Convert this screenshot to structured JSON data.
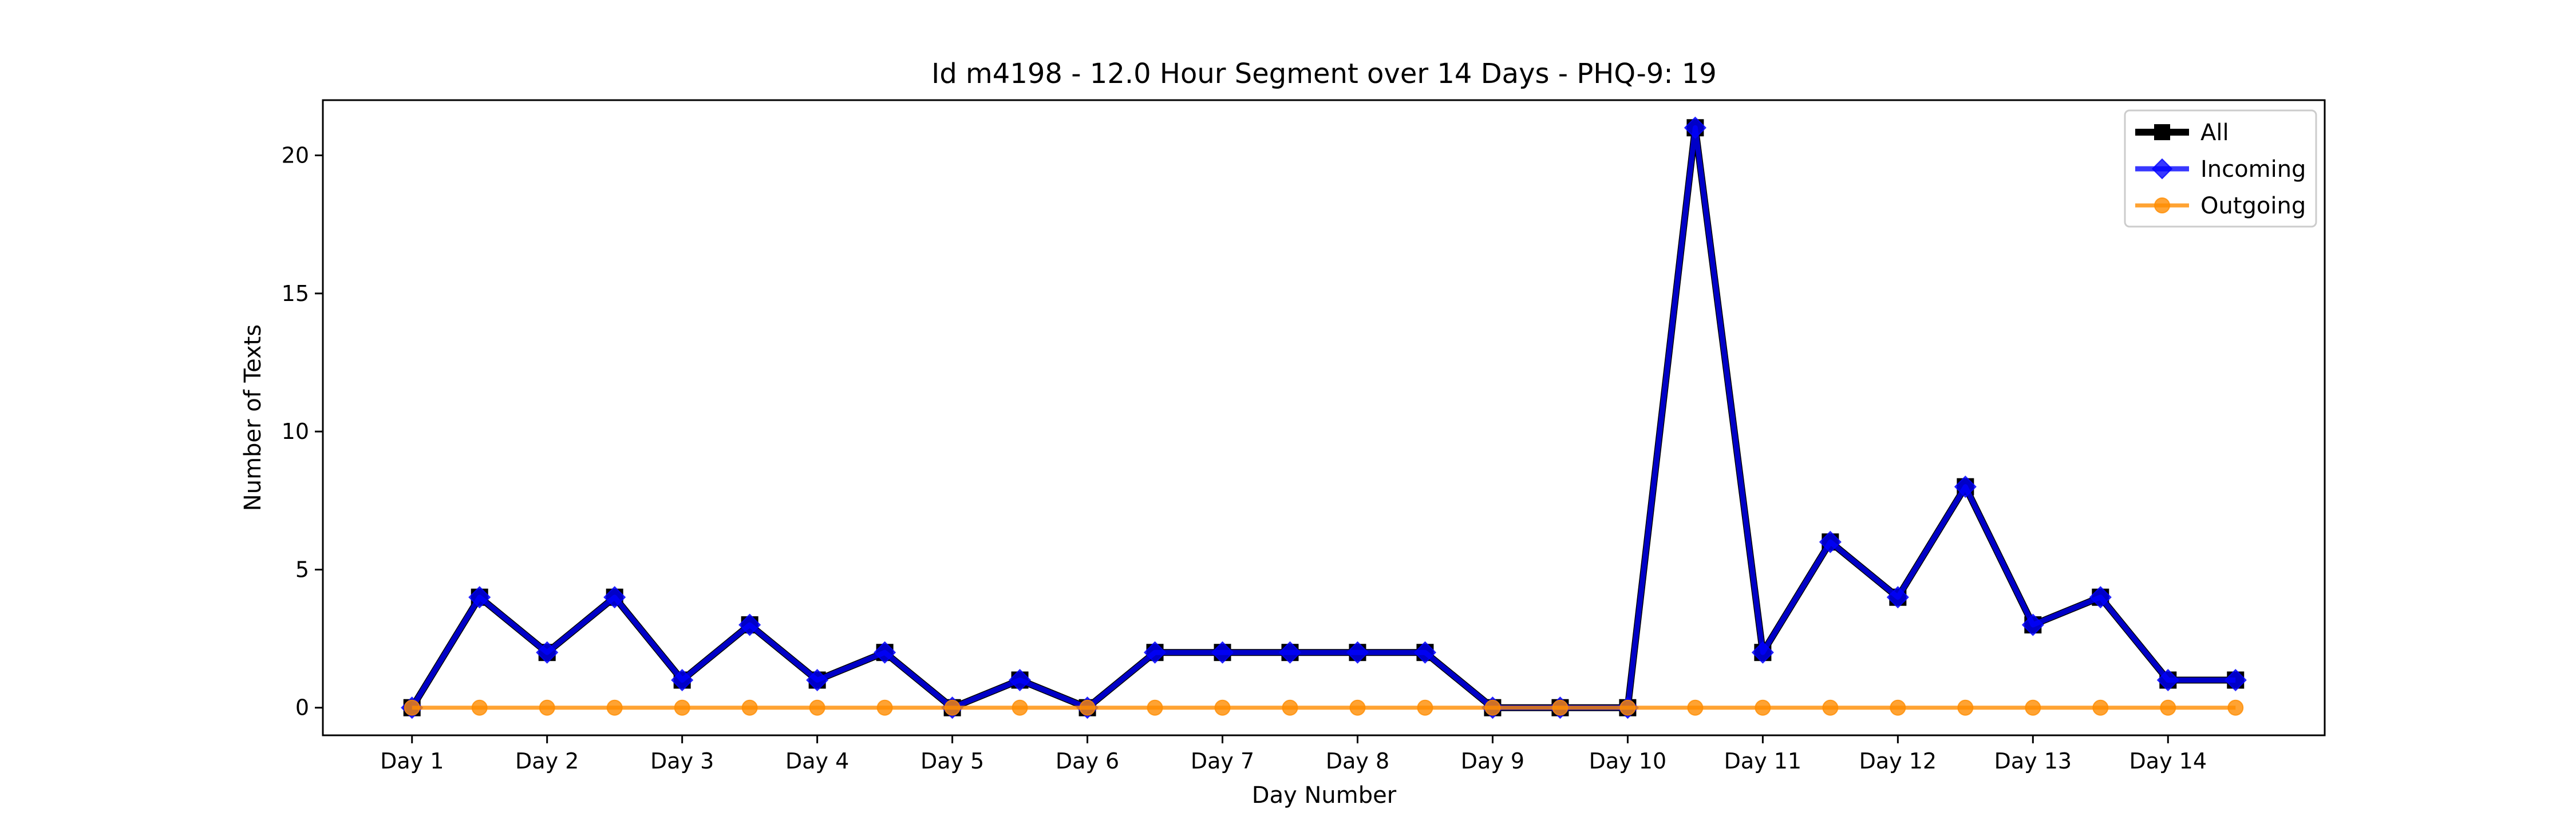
{
  "chart_data": {
    "type": "line",
    "title": "Id m4198 - 12.0 Hour Segment over 14 Days - PHQ-9: 19",
    "xlabel": "Day Number",
    "ylabel": "Number of Texts",
    "x_tick_labels": [
      "Day 1",
      "Day 2",
      "Day 3",
      "Day 4",
      "Day 5",
      "Day 6",
      "Day 7",
      "Day 8",
      "Day 9",
      "Day 10",
      "Day 11",
      "Day 12",
      "Day 13",
      "Day 14"
    ],
    "x": [
      1,
      1.5,
      2,
      2.5,
      3,
      3.5,
      4,
      4.5,
      5,
      5.5,
      6,
      6.5,
      7,
      7.5,
      8,
      8.5,
      9,
      9.5,
      10,
      10.5,
      11,
      11.5,
      12,
      12.5,
      13,
      13.5,
      14,
      14.5
    ],
    "y_ticks": [
      0,
      5,
      10,
      15,
      20
    ],
    "ylim": [
      -1,
      22
    ],
    "xlim": [
      0.34,
      15.16
    ],
    "grid": false,
    "legend_position": "top-right",
    "series": [
      {
        "name": "All",
        "color": "#000000",
        "marker": "square",
        "values": [
          0,
          4,
          2,
          4,
          1,
          3,
          1,
          2,
          0,
          1,
          0,
          2,
          2,
          2,
          2,
          2,
          0,
          0,
          0,
          21,
          2,
          6,
          4,
          8,
          3,
          4,
          1,
          1
        ]
      },
      {
        "name": "Incoming",
        "color": "#0000ff",
        "marker": "diamond",
        "values": [
          0,
          4,
          2,
          4,
          1,
          3,
          1,
          2,
          0,
          1,
          0,
          2,
          2,
          2,
          2,
          2,
          0,
          0,
          0,
          21,
          2,
          6,
          4,
          8,
          3,
          4,
          1,
          1
        ]
      },
      {
        "name": "Outgoing",
        "color": "#ff8c00",
        "marker": "circle",
        "values": [
          0,
          0,
          0,
          0,
          0,
          0,
          0,
          0,
          0,
          0,
          0,
          0,
          0,
          0,
          0,
          0,
          0,
          0,
          0,
          0,
          0,
          0,
          0,
          0,
          0,
          0,
          0,
          0
        ]
      }
    ]
  }
}
